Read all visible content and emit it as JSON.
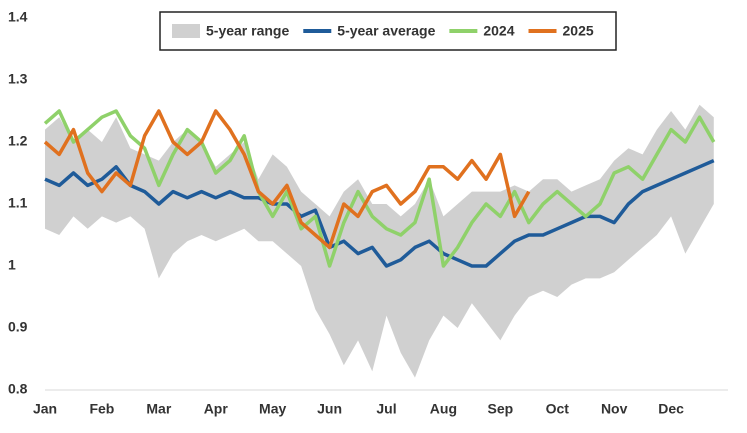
{
  "chart_data": {
    "type": "line",
    "categories": [
      "Jan",
      null,
      null,
      null,
      "Feb",
      null,
      null,
      null,
      "Mar",
      null,
      null,
      null,
      "Apr",
      null,
      null,
      null,
      "May",
      null,
      null,
      null,
      "Jun",
      null,
      null,
      null,
      "Jul",
      null,
      null,
      null,
      "Aug",
      null,
      null,
      null,
      "Sep",
      null,
      null,
      null,
      "Oct",
      null,
      null,
      null,
      "Nov",
      null,
      null,
      null,
      "Dec",
      null,
      null,
      null
    ],
    "series": [
      {
        "name": "5-year range",
        "color": "#d0d0d0",
        "low": [
          1.06,
          1.05,
          1.08,
          1.06,
          1.08,
          1.07,
          1.08,
          1.06,
          0.98,
          1.02,
          1.04,
          1.05,
          1.04,
          1.05,
          1.06,
          1.04,
          1.04,
          1.02,
          1.0,
          0.93,
          0.89,
          0.84,
          0.88,
          0.83,
          0.92,
          0.86,
          0.82,
          0.88,
          0.92,
          0.9,
          0.94,
          0.91,
          0.88,
          0.92,
          0.95,
          0.96,
          0.95,
          0.97,
          0.98,
          0.98,
          0.99,
          1.01,
          1.03,
          1.05,
          1.08,
          1.02,
          1.06,
          1.1
        ],
        "high": [
          1.22,
          1.24,
          1.2,
          1.22,
          1.2,
          1.24,
          1.19,
          1.18,
          1.17,
          1.2,
          1.22,
          1.2,
          1.16,
          1.18,
          1.2,
          1.14,
          1.18,
          1.16,
          1.12,
          1.1,
          1.08,
          1.12,
          1.14,
          1.1,
          1.1,
          1.08,
          1.1,
          1.14,
          1.08,
          1.1,
          1.12,
          1.12,
          1.12,
          1.13,
          1.12,
          1.14,
          1.14,
          1.12,
          1.13,
          1.14,
          1.17,
          1.19,
          1.18,
          1.22,
          1.25,
          1.22,
          1.26,
          1.24
        ]
      },
      {
        "name": "5-year average",
        "color": "#1f5b99",
        "values": [
          1.14,
          1.13,
          1.15,
          1.13,
          1.14,
          1.16,
          1.13,
          1.12,
          1.1,
          1.12,
          1.11,
          1.12,
          1.11,
          1.12,
          1.11,
          1.11,
          1.1,
          1.1,
          1.08,
          1.09,
          1.03,
          1.04,
          1.02,
          1.03,
          1.0,
          1.01,
          1.03,
          1.04,
          1.02,
          1.01,
          1.0,
          1.0,
          1.02,
          1.04,
          1.05,
          1.05,
          1.06,
          1.07,
          1.08,
          1.08,
          1.07,
          1.1,
          1.12,
          1.13,
          1.14,
          1.15,
          1.16,
          1.17
        ]
      },
      {
        "name": "2024",
        "color": "#8fd16a",
        "values": [
          1.23,
          1.25,
          1.2,
          1.22,
          1.24,
          1.25,
          1.21,
          1.19,
          1.13,
          1.18,
          1.22,
          1.2,
          1.15,
          1.17,
          1.21,
          1.12,
          1.08,
          1.12,
          1.06,
          1.08,
          1.0,
          1.07,
          1.12,
          1.08,
          1.06,
          1.05,
          1.07,
          1.14,
          1.0,
          1.03,
          1.07,
          1.1,
          1.08,
          1.12,
          1.07,
          1.1,
          1.12,
          1.1,
          1.08,
          1.1,
          1.15,
          1.16,
          1.14,
          1.18,
          1.22,
          1.2,
          1.24,
          1.2
        ]
      },
      {
        "name": "2025",
        "color": "#e0711f",
        "values": [
          1.2,
          1.18,
          1.22,
          1.15,
          1.12,
          1.15,
          1.13,
          1.21,
          1.25,
          1.2,
          1.18,
          1.2,
          1.25,
          1.22,
          1.18,
          1.12,
          1.1,
          1.13,
          1.07,
          1.05,
          1.03,
          1.1,
          1.08,
          1.12,
          1.13,
          1.1,
          1.12,
          1.16,
          1.16,
          1.14,
          1.17,
          1.14,
          1.18,
          1.08,
          1.12,
          null,
          null,
          null,
          null,
          null,
          null,
          null,
          null,
          null,
          null,
          null,
          null,
          null
        ]
      }
    ],
    "ylim": [
      0.8,
      1.4
    ],
    "yticks": [
      0.8,
      0.9,
      1,
      1.1,
      1.2,
      1.3,
      1.4
    ]
  }
}
